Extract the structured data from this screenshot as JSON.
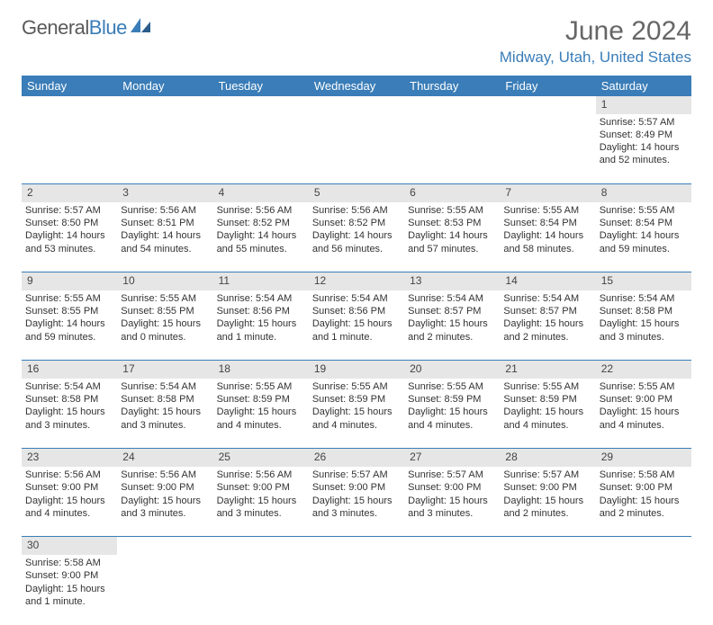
{
  "logo": {
    "text_a": "General",
    "text_b": "Blue"
  },
  "header": {
    "month": "June 2024",
    "location": "Midway, Utah, United States"
  },
  "colors": {
    "accent": "#3a7db8",
    "grey_bar": "#e6e6e6",
    "text": "#333333",
    "header_text": "#ffffff"
  },
  "weekdays": [
    "Sunday",
    "Monday",
    "Tuesday",
    "Wednesday",
    "Thursday",
    "Friday",
    "Saturday"
  ],
  "weeks": [
    [
      null,
      null,
      null,
      null,
      null,
      null,
      {
        "n": "1",
        "sr": "Sunrise: 5:57 AM",
        "ss": "Sunset: 8:49 PM",
        "dl": "Daylight: 14 hours and 52 minutes."
      }
    ],
    [
      {
        "n": "2",
        "sr": "Sunrise: 5:57 AM",
        "ss": "Sunset: 8:50 PM",
        "dl": "Daylight: 14 hours and 53 minutes."
      },
      {
        "n": "3",
        "sr": "Sunrise: 5:56 AM",
        "ss": "Sunset: 8:51 PM",
        "dl": "Daylight: 14 hours and 54 minutes."
      },
      {
        "n": "4",
        "sr": "Sunrise: 5:56 AM",
        "ss": "Sunset: 8:52 PM",
        "dl": "Daylight: 14 hours and 55 minutes."
      },
      {
        "n": "5",
        "sr": "Sunrise: 5:56 AM",
        "ss": "Sunset: 8:52 PM",
        "dl": "Daylight: 14 hours and 56 minutes."
      },
      {
        "n": "6",
        "sr": "Sunrise: 5:55 AM",
        "ss": "Sunset: 8:53 PM",
        "dl": "Daylight: 14 hours and 57 minutes."
      },
      {
        "n": "7",
        "sr": "Sunrise: 5:55 AM",
        "ss": "Sunset: 8:54 PM",
        "dl": "Daylight: 14 hours and 58 minutes."
      },
      {
        "n": "8",
        "sr": "Sunrise: 5:55 AM",
        "ss": "Sunset: 8:54 PM",
        "dl": "Daylight: 14 hours and 59 minutes."
      }
    ],
    [
      {
        "n": "9",
        "sr": "Sunrise: 5:55 AM",
        "ss": "Sunset: 8:55 PM",
        "dl": "Daylight: 14 hours and 59 minutes."
      },
      {
        "n": "10",
        "sr": "Sunrise: 5:55 AM",
        "ss": "Sunset: 8:55 PM",
        "dl": "Daylight: 15 hours and 0 minutes."
      },
      {
        "n": "11",
        "sr": "Sunrise: 5:54 AM",
        "ss": "Sunset: 8:56 PM",
        "dl": "Daylight: 15 hours and 1 minute."
      },
      {
        "n": "12",
        "sr": "Sunrise: 5:54 AM",
        "ss": "Sunset: 8:56 PM",
        "dl": "Daylight: 15 hours and 1 minute."
      },
      {
        "n": "13",
        "sr": "Sunrise: 5:54 AM",
        "ss": "Sunset: 8:57 PM",
        "dl": "Daylight: 15 hours and 2 minutes."
      },
      {
        "n": "14",
        "sr": "Sunrise: 5:54 AM",
        "ss": "Sunset: 8:57 PM",
        "dl": "Daylight: 15 hours and 2 minutes."
      },
      {
        "n": "15",
        "sr": "Sunrise: 5:54 AM",
        "ss": "Sunset: 8:58 PM",
        "dl": "Daylight: 15 hours and 3 minutes."
      }
    ],
    [
      {
        "n": "16",
        "sr": "Sunrise: 5:54 AM",
        "ss": "Sunset: 8:58 PM",
        "dl": "Daylight: 15 hours and 3 minutes."
      },
      {
        "n": "17",
        "sr": "Sunrise: 5:54 AM",
        "ss": "Sunset: 8:58 PM",
        "dl": "Daylight: 15 hours and 3 minutes."
      },
      {
        "n": "18",
        "sr": "Sunrise: 5:55 AM",
        "ss": "Sunset: 8:59 PM",
        "dl": "Daylight: 15 hours and 4 minutes."
      },
      {
        "n": "19",
        "sr": "Sunrise: 5:55 AM",
        "ss": "Sunset: 8:59 PM",
        "dl": "Daylight: 15 hours and 4 minutes."
      },
      {
        "n": "20",
        "sr": "Sunrise: 5:55 AM",
        "ss": "Sunset: 8:59 PM",
        "dl": "Daylight: 15 hours and 4 minutes."
      },
      {
        "n": "21",
        "sr": "Sunrise: 5:55 AM",
        "ss": "Sunset: 8:59 PM",
        "dl": "Daylight: 15 hours and 4 minutes."
      },
      {
        "n": "22",
        "sr": "Sunrise: 5:55 AM",
        "ss": "Sunset: 9:00 PM",
        "dl": "Daylight: 15 hours and 4 minutes."
      }
    ],
    [
      {
        "n": "23",
        "sr": "Sunrise: 5:56 AM",
        "ss": "Sunset: 9:00 PM",
        "dl": "Daylight: 15 hours and 4 minutes."
      },
      {
        "n": "24",
        "sr": "Sunrise: 5:56 AM",
        "ss": "Sunset: 9:00 PM",
        "dl": "Daylight: 15 hours and 3 minutes."
      },
      {
        "n": "25",
        "sr": "Sunrise: 5:56 AM",
        "ss": "Sunset: 9:00 PM",
        "dl": "Daylight: 15 hours and 3 minutes."
      },
      {
        "n": "26",
        "sr": "Sunrise: 5:57 AM",
        "ss": "Sunset: 9:00 PM",
        "dl": "Daylight: 15 hours and 3 minutes."
      },
      {
        "n": "27",
        "sr": "Sunrise: 5:57 AM",
        "ss": "Sunset: 9:00 PM",
        "dl": "Daylight: 15 hours and 3 minutes."
      },
      {
        "n": "28",
        "sr": "Sunrise: 5:57 AM",
        "ss": "Sunset: 9:00 PM",
        "dl": "Daylight: 15 hours and 2 minutes."
      },
      {
        "n": "29",
        "sr": "Sunrise: 5:58 AM",
        "ss": "Sunset: 9:00 PM",
        "dl": "Daylight: 15 hours and 2 minutes."
      }
    ],
    [
      {
        "n": "30",
        "sr": "Sunrise: 5:58 AM",
        "ss": "Sunset: 9:00 PM",
        "dl": "Daylight: 15 hours and 1 minute."
      },
      null,
      null,
      null,
      null,
      null,
      null
    ]
  ]
}
